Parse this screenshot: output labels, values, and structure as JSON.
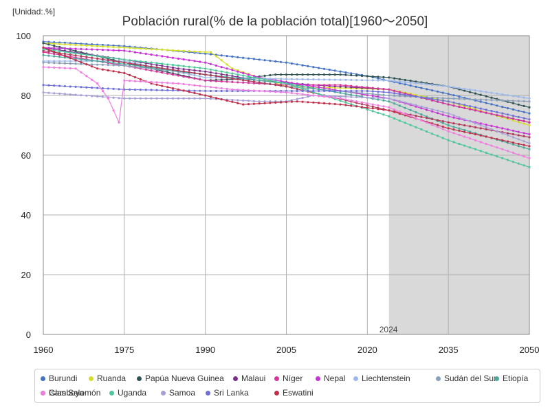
{
  "chart_data": {
    "type": "line",
    "title": "Población rural(% de la población total)[1960〜2050]",
    "unit_label": "[Unidad:.%]",
    "xlabel": "",
    "ylabel": "",
    "xlim": [
      1960,
      2050
    ],
    "ylim": [
      0,
      100
    ],
    "x_ticks": [
      1960,
      1975,
      1990,
      2005,
      2020,
      2035,
      2050
    ],
    "y_ticks": [
      0,
      20,
      40,
      60,
      80,
      100
    ],
    "grid": true,
    "projection_start": 2024,
    "projection_label": "2024",
    "legend_position": "bottom",
    "series": [
      {
        "name": "Burundi",
        "color": "#4472c4",
        "points": [
          [
            1960,
            98
          ],
          [
            1975,
            96.5
          ],
          [
            1990,
            94
          ],
          [
            2005,
            91
          ],
          [
            2020,
            86.5
          ],
          [
            2035,
            80.5
          ],
          [
            2050,
            74
          ]
        ]
      },
      {
        "name": "Ruanda",
        "color": "#d6de2a",
        "points": [
          [
            1960,
            97.5
          ],
          [
            1975,
            96
          ],
          [
            1990,
            94.5
          ],
          [
            1991,
            94.5
          ],
          [
            1995,
            89
          ],
          [
            2000,
            86
          ],
          [
            2005,
            83
          ],
          [
            2015,
            82.5
          ],
          [
            2024,
            82
          ],
          [
            2035,
            78
          ],
          [
            2050,
            70
          ]
        ]
      },
      {
        "name": "Papúa Nueva Guinea",
        "color": "#2f5355",
        "points": [
          [
            1960,
            97.5
          ],
          [
            1975,
            91
          ],
          [
            1980,
            89
          ],
          [
            1990,
            85
          ],
          [
            1996,
            85.5
          ],
          [
            2003,
            87
          ],
          [
            2015,
            87
          ],
          [
            2024,
            86
          ],
          [
            2035,
            83
          ],
          [
            2050,
            76
          ]
        ]
      },
      {
        "name": "Malaui",
        "color": "#7b2d8e",
        "points": [
          [
            1960,
            96
          ],
          [
            1975,
            92
          ],
          [
            1985,
            89
          ],
          [
            1990,
            88
          ],
          [
            2000,
            85
          ],
          [
            2010,
            83.5
          ],
          [
            2024,
            82
          ],
          [
            2035,
            77
          ],
          [
            2050,
            71
          ]
        ]
      },
      {
        "name": "Níger",
        "color": "#d4369a",
        "points": [
          [
            1960,
            94.5
          ],
          [
            1975,
            90
          ],
          [
            1990,
            85
          ],
          [
            2005,
            83.5
          ],
          [
            2015,
            83.5
          ],
          [
            2024,
            82
          ],
          [
            2035,
            77
          ],
          [
            2050,
            71
          ]
        ]
      },
      {
        "name": "Nepal",
        "color": "#c832d6",
        "points": [
          [
            1960,
            96
          ],
          [
            1975,
            95
          ],
          [
            1990,
            91
          ],
          [
            2000,
            86
          ],
          [
            2010,
            83
          ],
          [
            2024,
            79
          ],
          [
            2035,
            73
          ],
          [
            2050,
            67
          ]
        ]
      },
      {
        "name": "Liechtenstein",
        "color": "#9db8ea",
        "points": [
          [
            1960,
            91.5
          ],
          [
            1975,
            91.5
          ],
          [
            1990,
            86
          ],
          [
            2005,
            85.5
          ],
          [
            2024,
            85
          ],
          [
            2035,
            83
          ],
          [
            2050,
            79
          ]
        ]
      },
      {
        "name": "Sudán del Sur",
        "color": "#8a9fb8",
        "points": [
          [
            1960,
            91
          ],
          [
            1975,
            90
          ],
          [
            1990,
            87
          ],
          [
            2005,
            83
          ],
          [
            2024,
            80
          ],
          [
            2035,
            79
          ],
          [
            2050,
            78
          ]
        ]
      },
      {
        "name": "Etiopía",
        "color": "#4da89c",
        "points": [
          [
            1960,
            93.5
          ],
          [
            1975,
            90.5
          ],
          [
            1990,
            87
          ],
          [
            2005,
            84
          ],
          [
            2024,
            78
          ],
          [
            2035,
            70
          ],
          [
            2050,
            62
          ]
        ]
      },
      {
        "name": "Islas Salomón",
        "color": "#b03a5a",
        "points": [
          [
            1960,
            95
          ],
          [
            1975,
            91
          ],
          [
            1990,
            87
          ],
          [
            2005,
            83
          ],
          [
            2024,
            75
          ],
          [
            2035,
            71
          ],
          [
            2050,
            66
          ]
        ]
      },
      {
        "name": "Uganda",
        "color": "#4cc79a",
        "points": [
          [
            1960,
            95.5
          ],
          [
            1975,
            92
          ],
          [
            1990,
            89
          ],
          [
            2005,
            84
          ],
          [
            2024,
            73
          ],
          [
            2035,
            65
          ],
          [
            2050,
            56
          ]
        ]
      },
      {
        "name": "Samoa",
        "color": "#a79ed6",
        "points": [
          [
            1960,
            81
          ],
          [
            1975,
            79
          ],
          [
            1990,
            79
          ],
          [
            2000,
            78
          ],
          [
            2005,
            78
          ],
          [
            2010,
            80
          ],
          [
            2024,
            79
          ],
          [
            2035,
            74
          ],
          [
            2050,
            64
          ]
        ]
      },
      {
        "name": "Sri Lanka",
        "color": "#7070d8",
        "points": [
          [
            1960,
            83.5
          ],
          [
            1975,
            82
          ],
          [
            1990,
            81.5
          ],
          [
            2005,
            81.5
          ],
          [
            2020,
            81.5
          ],
          [
            2024,
            81
          ],
          [
            2035,
            78
          ],
          [
            2050,
            72
          ]
        ]
      },
      {
        "name": "Eswatini",
        "color": "#c0304a",
        "points": [
          [
            1960,
            96
          ],
          [
            1970,
            89
          ],
          [
            1975,
            87.5
          ],
          [
            1980,
            84
          ],
          [
            1990,
            80
          ],
          [
            1997,
            77
          ],
          [
            2007,
            78
          ],
          [
            2015,
            77
          ],
          [
            2024,
            75
          ],
          [
            2035,
            69
          ],
          [
            2050,
            63
          ]
        ]
      },
      {
        "name": "Camboya",
        "color": "#ef7ee0",
        "points": [
          [
            1960,
            89.5
          ],
          [
            1966,
            89
          ],
          [
            1970,
            84
          ],
          [
            1972,
            79
          ],
          [
            1974,
            71
          ],
          [
            1975,
            85
          ],
          [
            1985,
            84
          ],
          [
            1995,
            82
          ],
          [
            2005,
            81
          ],
          [
            2015,
            79
          ],
          [
            2024,
            76
          ],
          [
            2035,
            68
          ],
          [
            2050,
            59
          ]
        ]
      }
    ]
  }
}
